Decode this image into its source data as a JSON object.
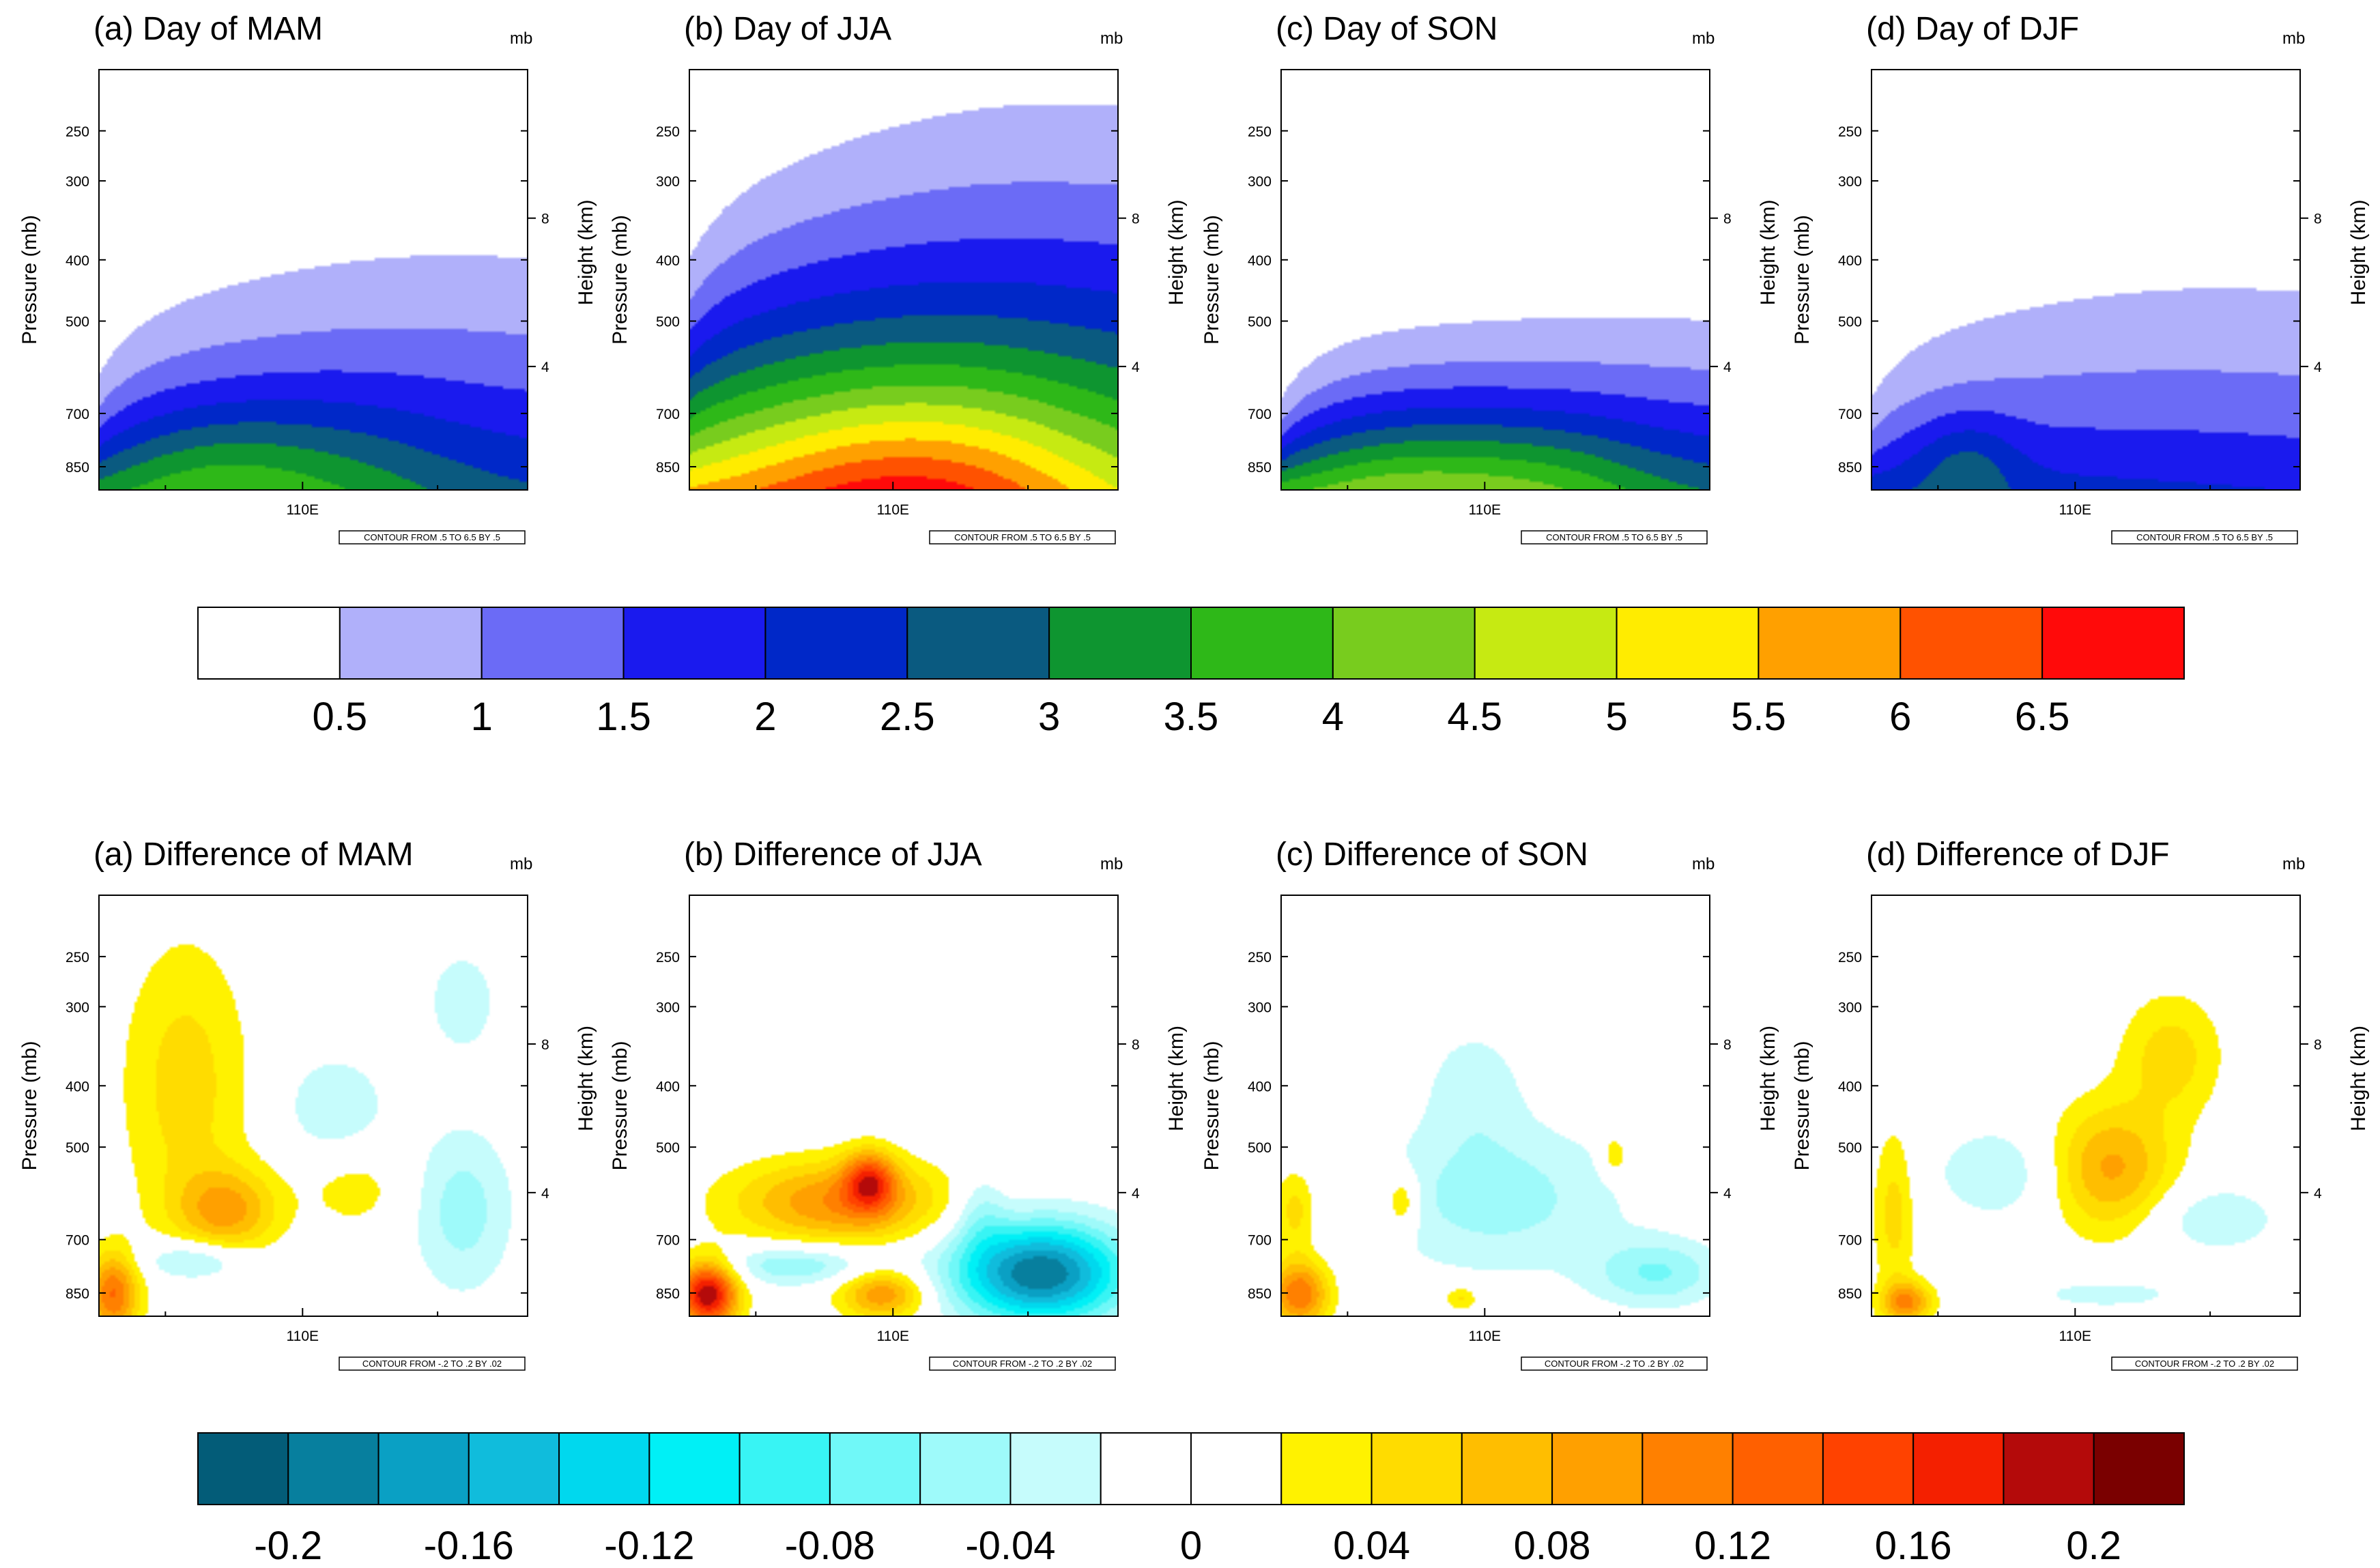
{
  "figure": {
    "top_row_label": "Day",
    "bottom_row_label": "Difference"
  },
  "chart_data": [
    {
      "type": "heatmap",
      "group": "day",
      "season": "MAM",
      "title": "(a) Day of MAM",
      "xlabel": "",
      "ylabel": "Pressure (mb)",
      "ylabel_right": "Height (km)",
      "unit_label": "mb",
      "x_ticks": [
        "110E"
      ],
      "y_ticks": [
        250,
        300,
        400,
        500,
        700,
        850
      ],
      "y_ticks_right": [
        4,
        8
      ],
      "info": "CONTOUR FROM .5 TO 6.5 BY .5",
      "contour_levels": [
        0.5,
        1,
        1.5,
        2,
        2.5,
        3,
        3.5,
        4,
        4.5,
        5,
        5.5,
        6,
        6.5
      ],
      "max_value": 3.8
    },
    {
      "type": "heatmap",
      "group": "day",
      "season": "JJA",
      "title": "(b) Day of JJA",
      "xlabel": "",
      "ylabel": "Pressure (mb)",
      "ylabel_right": "Height (km)",
      "unit_label": "mb",
      "x_ticks": [
        "110E"
      ],
      "y_ticks": [
        250,
        300,
        400,
        500,
        700,
        850
      ],
      "y_ticks_right": [
        4,
        8
      ],
      "info": "CONTOUR FROM .5 TO 6.5 BY .5",
      "contour_levels": [
        0.5,
        1,
        1.5,
        2,
        2.5,
        3,
        3.5,
        4,
        4.5,
        5,
        5.5,
        6,
        6.5
      ],
      "max_value": 6.8
    },
    {
      "type": "heatmap",
      "group": "day",
      "season": "SON",
      "title": "(c) Day of SON",
      "xlabel": "",
      "ylabel": "Pressure (mb)",
      "ylabel_right": "Height (km)",
      "unit_label": "mb",
      "x_ticks": [
        "110E"
      ],
      "y_ticks": [
        250,
        300,
        400,
        500,
        700,
        850
      ],
      "y_ticks_right": [
        4,
        8
      ],
      "info": "CONTOUR FROM .5 TO 6.5 BY .5",
      "contour_levels": [
        0.5,
        1,
        1.5,
        2,
        2.5,
        3,
        3.5,
        4,
        4.5,
        5,
        5.5,
        6,
        6.5
      ],
      "max_value": 4.3
    },
    {
      "type": "heatmap",
      "group": "day",
      "season": "DJF",
      "title": "(d) Day of DJF",
      "xlabel": "",
      "ylabel": "Pressure (mb)",
      "ylabel_right": "Height (km)",
      "unit_label": "mb",
      "x_ticks": [
        "110E"
      ],
      "y_ticks": [
        250,
        300,
        400,
        500,
        700,
        850
      ],
      "y_ticks_right": [
        4,
        8
      ],
      "info": "CONTOUR FROM .5 TO 6.5 BY .5",
      "contour_levels": [
        0.5,
        1,
        1.5,
        2,
        2.5,
        3,
        3.5,
        4,
        4.5,
        5,
        5.5,
        6,
        6.5
      ],
      "max_value": 3.0
    },
    {
      "type": "heatmap",
      "group": "diff",
      "season": "MAM",
      "title": "(a) Difference of MAM",
      "xlabel": "",
      "ylabel": "Pressure (mb)",
      "ylabel_right": "Height (km)",
      "unit_label": "mb",
      "x_ticks": [
        "110E"
      ],
      "y_ticks": [
        250,
        300,
        400,
        500,
        700,
        850
      ],
      "y_ticks_right": [
        4,
        8
      ],
      "info": "CONTOUR FROM -.2 TO .2 BY .02",
      "contour_levels": [
        -0.2,
        -0.18,
        -0.16,
        -0.14,
        -0.12,
        -0.1,
        -0.08,
        -0.06,
        -0.04,
        -0.02,
        0,
        0.02,
        0.04,
        0.06,
        0.08,
        0.1,
        0.12,
        0.14,
        0.16,
        0.18,
        0.2
      ]
    },
    {
      "type": "heatmap",
      "group": "diff",
      "season": "JJA",
      "title": "(b) Difference of JJA",
      "xlabel": "",
      "ylabel": "Pressure (mb)",
      "ylabel_right": "Height (km)",
      "unit_label": "mb",
      "x_ticks": [
        "110E"
      ],
      "y_ticks": [
        250,
        300,
        400,
        500,
        700,
        850
      ],
      "y_ticks_right": [
        4,
        8
      ],
      "info": "CONTOUR FROM -.2 TO .2 BY .02",
      "contour_levels": [
        -0.2,
        -0.18,
        -0.16,
        -0.14,
        -0.12,
        -0.1,
        -0.08,
        -0.06,
        -0.04,
        -0.02,
        0,
        0.02,
        0.04,
        0.06,
        0.08,
        0.1,
        0.12,
        0.14,
        0.16,
        0.18,
        0.2
      ]
    },
    {
      "type": "heatmap",
      "group": "diff",
      "season": "SON",
      "title": "(c) Difference of SON",
      "xlabel": "",
      "ylabel": "Pressure (mb)",
      "ylabel_right": "Height (km)",
      "unit_label": "mb",
      "x_ticks": [
        "110E"
      ],
      "y_ticks": [
        250,
        300,
        400,
        500,
        700,
        850
      ],
      "y_ticks_right": [
        4,
        8
      ],
      "info": "CONTOUR FROM -.2 TO .2 BY .02",
      "contour_levels": [
        -0.2,
        -0.18,
        -0.16,
        -0.14,
        -0.12,
        -0.1,
        -0.08,
        -0.06,
        -0.04,
        -0.02,
        0,
        0.02,
        0.04,
        0.06,
        0.08,
        0.1,
        0.12,
        0.14,
        0.16,
        0.18,
        0.2
      ]
    },
    {
      "type": "heatmap",
      "group": "diff",
      "season": "DJF",
      "title": "(d) Difference of DJF",
      "xlabel": "",
      "ylabel": "Pressure (mb)",
      "ylabel_right": "Height (km)",
      "unit_label": "mb",
      "x_ticks": [
        "110E"
      ],
      "y_ticks": [
        250,
        300,
        400,
        500,
        700,
        850
      ],
      "y_ticks_right": [
        4,
        8
      ],
      "info": "CONTOUR FROM -.2 TO .2 BY .02",
      "contour_levels": [
        -0.2,
        -0.18,
        -0.16,
        -0.14,
        -0.12,
        -0.1,
        -0.08,
        -0.06,
        -0.04,
        -0.02,
        0,
        0.02,
        0.04,
        0.06,
        0.08,
        0.1,
        0.12,
        0.14,
        0.16,
        0.18,
        0.2
      ]
    }
  ],
  "colorbars": {
    "day": {
      "labels": [
        "0.5",
        "1",
        "1.5",
        "2",
        "2.5",
        "3",
        "3.5",
        "4",
        "4.5",
        "5",
        "5.5",
        "6",
        "6.5"
      ],
      "colors": [
        "#ffffff",
        "#b0b0fa",
        "#6b6bf6",
        "#1a1aee",
        "#0028c8",
        "#0a5a80",
        "#0e9530",
        "#2eb818",
        "#78cc1e",
        "#c6ea12",
        "#ffec00",
        "#ffa000",
        "#ff5200",
        "#ff0a0a"
      ]
    },
    "diff": {
      "labels": [
        "-0.2",
        "-0.16",
        "-0.12",
        "-0.08",
        "-0.04",
        "0",
        "0.04",
        "0.08",
        "0.12",
        "0.16",
        "0.2"
      ],
      "colors": [
        "#035c78",
        "#077f9e",
        "#0aa0c4",
        "#10bcdc",
        "#00d8ee",
        "#00f0f6",
        "#38f4f4",
        "#70f8f8",
        "#9efafa",
        "#c6fcfc",
        "#ffffff",
        "#ffffff",
        "#fff200",
        "#ffdc00",
        "#ffbe00",
        "#ffa000",
        "#ff8000",
        "#ff6000",
        "#ff4200",
        "#f42000",
        "#b40a0a",
        "#7a0000"
      ]
    }
  }
}
